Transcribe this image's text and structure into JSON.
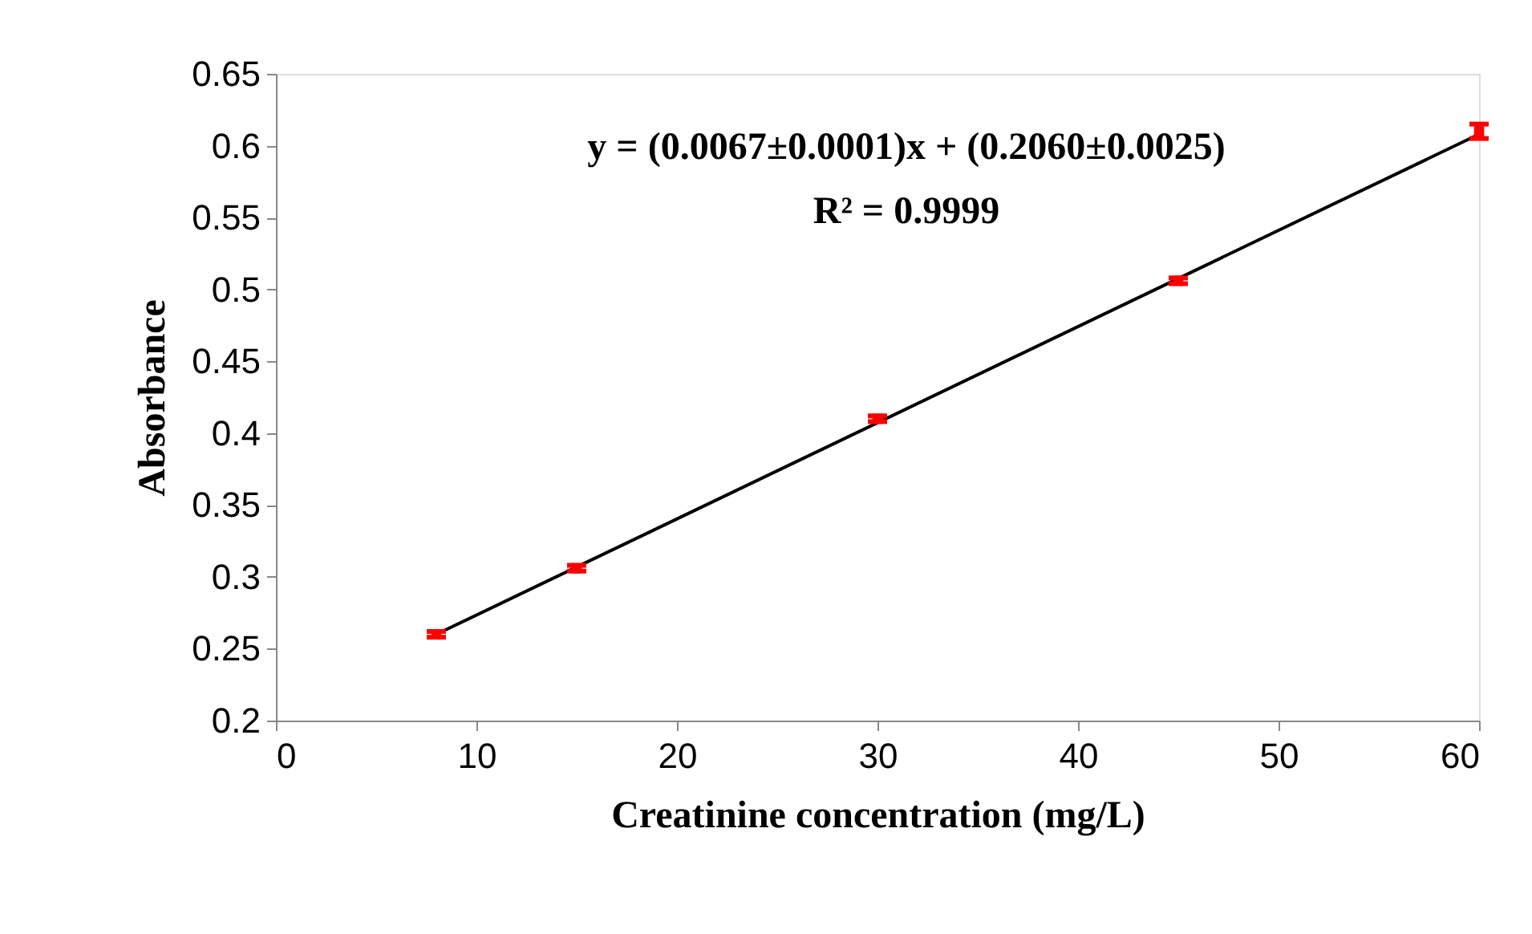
{
  "chart_data": {
    "type": "scatter",
    "xlabel": "Creatinine concentration (mg/L)",
    "ylabel": "Absorbance",
    "xlim": [
      0,
      60
    ],
    "xticks": [
      0,
      10,
      20,
      30,
      40,
      50,
      60
    ],
    "ylim": [
      0.2,
      0.65
    ],
    "yticks": [
      0.2,
      0.25,
      0.3,
      0.35,
      0.4,
      0.45,
      0.5,
      0.55,
      0.6,
      0.65
    ],
    "grid": false,
    "annotations": [
      "y = (0.0067±0.0001)x + (0.2060±0.0025)",
      "R² = 0.9999"
    ],
    "series": [
      {
        "type": "line",
        "color": "#000000",
        "x": [
          8,
          60
        ],
        "values": [
          0.26,
          0.608
        ],
        "line_style": "solid",
        "marker": "none"
      },
      {
        "color": "#ff0000",
        "marker": "square",
        "x": [
          8,
          15,
          30,
          45,
          60
        ],
        "values": [
          0.26,
          0.306,
          0.41,
          0.506,
          0.61
        ],
        "errors": [
          0.002,
          0.002,
          0.002,
          0.002,
          0.005
        ]
      }
    ]
  }
}
